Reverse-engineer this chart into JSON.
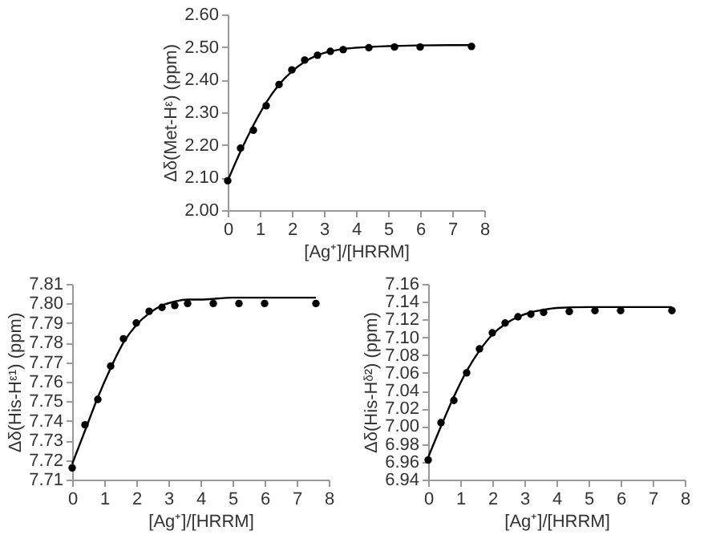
{
  "chart_data": [
    {
      "type": "scatter",
      "xlabel": "[Ag⁺]/[HRRM]",
      "ylabel": "Δδ(Met-Hᵋ) (ppm)",
      "xlim": [
        0,
        8
      ],
      "xticks": [
        0,
        1,
        2,
        3,
        4,
        5,
        6,
        7,
        8
      ],
      "ylim": [
        2.0,
        2.6
      ],
      "yticks": [
        {
          "value": 2.0,
          "label": "2.00"
        },
        {
          "value": 2.1,
          "label": "2.10"
        },
        {
          "value": 2.2,
          "label": "2.20"
        },
        {
          "value": 2.3,
          "label": "2.30"
        },
        {
          "value": 2.4,
          "label": "2.40"
        },
        {
          "value": 2.5,
          "label": "2.50"
        },
        {
          "value": 2.6,
          "label": "2.60"
        }
      ],
      "grid": false,
      "series": [
        {
          "type": "scatter",
          "marker": "circle",
          "color": "#000000",
          "x": [
            0,
            0.4,
            0.8,
            1.2,
            1.6,
            2.0,
            2.4,
            2.8,
            3.2,
            3.6,
            4.4,
            5.2,
            6.0,
            7.6
          ],
          "values": [
            2.09,
            2.19,
            2.245,
            2.32,
            2.385,
            2.43,
            2.46,
            2.475,
            2.487,
            2.492,
            2.498,
            2.5,
            2.5,
            2.502
          ]
        },
        {
          "type": "line",
          "marker": "none",
          "line_style": "solid",
          "color": "#000000",
          "x": [
            0,
            0.4,
            0.8,
            1.2,
            1.6,
            2.0,
            2.4,
            2.8,
            3.2,
            3.6,
            4.0,
            5.0,
            6.0,
            7.6
          ],
          "values": [
            2.09,
            2.18,
            2.26,
            2.33,
            2.385,
            2.425,
            2.455,
            2.475,
            2.487,
            2.494,
            2.498,
            2.503,
            2.505,
            2.506
          ]
        }
      ]
    },
    {
      "type": "scatter",
      "xlabel": "[Ag⁺]/[HRRM]",
      "ylabel": "Δδ(His-Hᵋ¹) (ppm)",
      "xlim": [
        0,
        8
      ],
      "xticks": [
        0,
        1,
        2,
        3,
        4,
        5,
        6,
        7,
        8
      ],
      "ylim": [
        7.71,
        7.81
      ],
      "yticks": [
        7.71,
        7.72,
        7.73,
        7.74,
        7.75,
        7.76,
        7.77,
        7.78,
        7.79,
        {
          "value": 7.8,
          "label": "7.80"
        },
        7.81
      ],
      "grid": false,
      "series": [
        {
          "type": "scatter",
          "marker": "circle",
          "color": "#000000",
          "x": [
            0,
            0.4,
            0.8,
            1.2,
            1.6,
            2.0,
            2.4,
            2.8,
            3.2,
            3.6,
            4.4,
            5.2,
            6.0,
            7.6
          ],
          "values": [
            7.716,
            7.738,
            7.751,
            7.768,
            7.782,
            7.79,
            7.796,
            7.798,
            7.799,
            7.8,
            7.8,
            7.8,
            7.8,
            7.8
          ]
        },
        {
          "type": "line",
          "marker": "none",
          "line_style": "solid",
          "color": "#000000",
          "x": [
            0,
            0.4,
            0.8,
            1.2,
            1.6,
            2.0,
            2.4,
            2.8,
            3.2,
            3.6,
            4.0,
            5.0,
            6.0,
            7.6
          ],
          "values": [
            7.718,
            7.735,
            7.752,
            7.767,
            7.78,
            7.789,
            7.795,
            7.799,
            7.801,
            7.802,
            7.802,
            7.803,
            7.803,
            7.803
          ]
        }
      ]
    },
    {
      "type": "scatter",
      "xlabel": "[Ag⁺]/[HRRM]",
      "ylabel": "Δδ(His-Hᵟ²) (ppm)",
      "xlim": [
        0,
        8
      ],
      "xticks": [
        0,
        1,
        2,
        3,
        4,
        5,
        6,
        7,
        8
      ],
      "ylim": [
        6.94,
        7.16
      ],
      "yticks": [
        6.94,
        6.96,
        6.98,
        {
          "value": 7.0,
          "label": "7.00"
        },
        7.02,
        7.04,
        7.06,
        7.08,
        {
          "value": 7.1,
          "label": "7.10"
        },
        7.12,
        7.14,
        7.16
      ],
      "grid": false,
      "series": [
        {
          "type": "scatter",
          "marker": "circle",
          "color": "#000000",
          "x": [
            0,
            0.4,
            0.8,
            1.2,
            1.6,
            2.0,
            2.4,
            2.8,
            3.2,
            3.6,
            4.4,
            5.2,
            6.0,
            7.6
          ],
          "values": [
            6.962,
            7.004,
            7.029,
            7.06,
            7.087,
            7.105,
            7.116,
            7.123,
            7.126,
            7.128,
            7.129,
            7.13,
            7.13,
            7.13
          ]
        },
        {
          "type": "line",
          "marker": "none",
          "line_style": "solid",
          "color": "#000000",
          "x": [
            0,
            0.4,
            0.8,
            1.2,
            1.6,
            2.0,
            2.4,
            2.8,
            3.2,
            3.6,
            4.0,
            5.0,
            6.0,
            7.6
          ],
          "values": [
            6.965,
            7.0,
            7.033,
            7.062,
            7.085,
            7.103,
            7.115,
            7.123,
            7.128,
            7.131,
            7.133,
            7.134,
            7.134,
            7.134
          ]
        }
      ]
    }
  ]
}
